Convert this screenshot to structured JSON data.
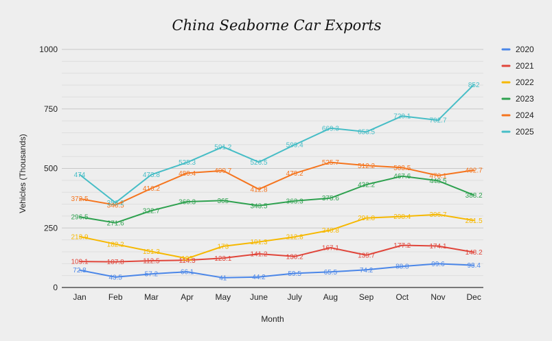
{
  "chart_data": {
    "type": "line",
    "title": "China Seaborne Car Exports",
    "xlabel": "Month",
    "ylabel": "Vehicles (Thousands)",
    "ylim": [
      0,
      1000
    ],
    "yticks": [
      "0",
      "250",
      "500",
      "750",
      "1000"
    ],
    "categories": [
      "Jan",
      "Feb",
      "Mar",
      "Apr",
      "May",
      "June",
      "July",
      "Aug",
      "Sep",
      "Oct",
      "Nov",
      "Dec"
    ],
    "grid": true,
    "legend_position": "right",
    "series": [
      {
        "name": "2020",
        "color": "#4a86e8",
        "values": [
          72.8,
          43.5,
          57.2,
          66.1,
          41,
          44.2,
          59.5,
          65.5,
          74.2,
          88.8,
          99.6,
          93.4
        ],
        "labels": [
          "72.8",
          "43.5",
          "57.2",
          "66.1",
          "41",
          "44.2",
          "59.5",
          "65.5",
          "74.2",
          "88.8",
          "99.6",
          "93.4"
        ]
      },
      {
        "name": "2021",
        "color": "#e0453a",
        "values": [
          109.1,
          107.8,
          112.5,
          114.3,
          123.1,
          141.2,
          130.2,
          167.1,
          135.7,
          177.2,
          174.1,
          148.2
        ],
        "labels": [
          "109.1",
          "107.8",
          "112.5",
          "114.3",
          "123.1",
          "141.2",
          "130.2",
          "167.1",
          "135.7",
          "177.2",
          "174.1",
          "148.2"
        ]
      },
      {
        "name": "2022",
        "color": "#f6b800",
        "values": [
          213.9,
          182.2,
          151.3,
          122,
          173,
          191.3,
          212.8,
          240.8,
          291.8,
          298.4,
          306.7,
          281.5
        ],
        "labels": [
          "213.9",
          "182.2",
          "151.3",
          "122",
          "173",
          "191.3",
          "212.8",
          "240.8",
          "291.8",
          "298.4",
          "306.7",
          "281.5"
        ]
      },
      {
        "name": "2023",
        "color": "#2ea14f",
        "values": [
          296.5,
          271.6,
          322.7,
          360.3,
          365,
          343.5,
          363.3,
          375.6,
          432.2,
          467.6,
          448.5,
          388.2
        ],
        "labels": [
          "296.5",
          "271.6",
          "322.7",
          "360.3",
          "365",
          "343.5",
          "363.3",
          "375.6",
          "432.2",
          "467.6",
          "448.5",
          "388.2"
        ]
      },
      {
        "name": "2024",
        "color": "#f5741d",
        "values": [
          372.5,
          346.5,
          416.2,
          480.4,
          490.7,
          412.8,
          479.2,
          525.7,
          512.2,
          503.5,
          470.1,
          492.7
        ],
        "labels": [
          "372.5",
          "346.5",
          "416.2",
          "480.4",
          "490.7",
          "412.8",
          "479.2",
          "525.7",
          "512.2",
          "503.5",
          "470.1",
          "492.7"
        ]
      },
      {
        "name": "2025",
        "color": "#46bdc6",
        "values": [
          474,
          356.2,
          473.8,
          525.3,
          591.2,
          526.5,
          599.4,
          669.3,
          653.5,
          720.1,
          702.7,
          852
        ],
        "labels": [
          "474",
          "356.2",
          "473.8",
          "525.3",
          "591.2",
          "526.5",
          "599.4",
          "669.3",
          "653.5",
          "720.1",
          "702.7",
          "852"
        ]
      }
    ]
  }
}
